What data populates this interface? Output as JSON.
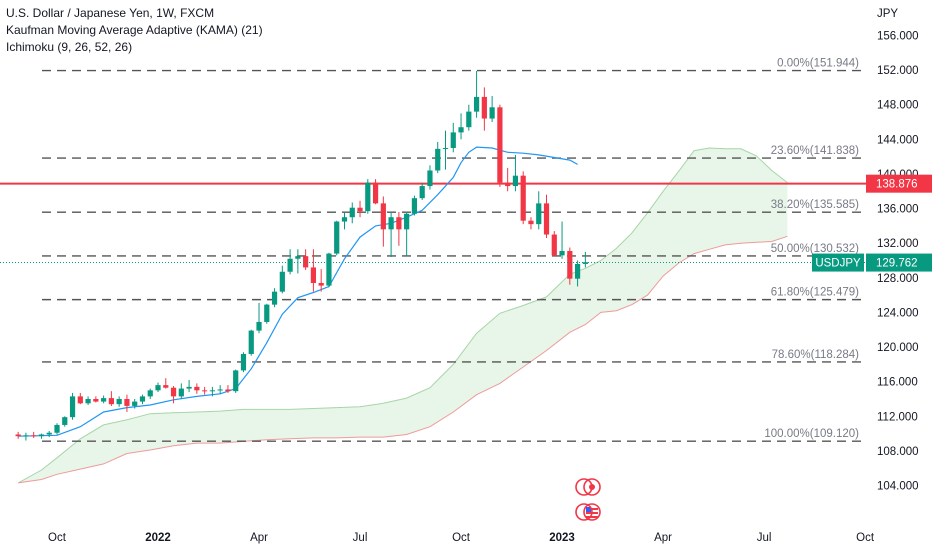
{
  "legend": {
    "title": "U.S. Dollar / Japanese Yen, 1W, FXCM",
    "kama": "Kaufman Moving Average Adaptive (KAMA) (21)",
    "ichimoku": "Ichimoku (9, 26, 52, 26)"
  },
  "colors": {
    "up": "#089981",
    "down": "#f23645",
    "kama": "#2196f3",
    "cloud_fill": "#e8f5e9",
    "span_a": "#a5d6a7",
    "span_b": "#ef9a9a",
    "hline": "#f23645",
    "price_line": "#089981",
    "fib": "#555555"
  },
  "chart_data": {
    "type": "candlestick",
    "symbol": "USDJPY",
    "currency_label": "JPY",
    "interval": "1W",
    "x_labels": [
      {
        "label": "Oct",
        "x": 0
      },
      {
        "label": "2022",
        "x": 13
      },
      {
        "label": "Apr",
        "x": 26
      },
      {
        "label": "Jul",
        "x": 39
      },
      {
        "label": "Oct",
        "x": 52
      },
      {
        "label": "2023",
        "x": 65
      },
      {
        "label": "Apr",
        "x": 78
      },
      {
        "label": "Jul",
        "x": 91
      },
      {
        "label": "Oct",
        "x": 104
      }
    ],
    "ylim": [
      101.0,
      159.0
    ],
    "y_ticks": [
      104.0,
      108.0,
      112.0,
      116.0,
      120.0,
      124.0,
      128.0,
      132.0,
      136.0,
      140.0,
      144.0,
      148.0,
      152.0,
      156.0
    ],
    "candles": [
      {
        "x": -5,
        "o": 109.9,
        "h": 110.2,
        "l": 109.4,
        "c": 109.7
      },
      {
        "x": -4,
        "o": 109.7,
        "h": 110.1,
        "l": 109.2,
        "c": 109.8
      },
      {
        "x": -3,
        "o": 109.8,
        "h": 110.2,
        "l": 109.5,
        "c": 109.7
      },
      {
        "x": -2,
        "o": 109.7,
        "h": 110.0,
        "l": 109.4,
        "c": 109.9
      },
      {
        "x": -1,
        "o": 109.9,
        "h": 110.3,
        "l": 109.6,
        "c": 110.1
      },
      {
        "x": 0,
        "o": 110.1,
        "h": 111.2,
        "l": 109.9,
        "c": 111.0
      },
      {
        "x": 1,
        "o": 111.0,
        "h": 112.0,
        "l": 110.8,
        "c": 111.9
      },
      {
        "x": 2,
        "o": 111.9,
        "h": 114.7,
        "l": 111.6,
        "c": 114.3
      },
      {
        "x": 3,
        "o": 114.3,
        "h": 114.7,
        "l": 113.4,
        "c": 113.5
      },
      {
        "x": 4,
        "o": 113.5,
        "h": 114.3,
        "l": 113.3,
        "c": 114.0
      },
      {
        "x": 5,
        "o": 114.0,
        "h": 114.3,
        "l": 113.6,
        "c": 113.7
      },
      {
        "x": 6,
        "o": 113.7,
        "h": 114.4,
        "l": 113.5,
        "c": 114.1
      },
      {
        "x": 7,
        "o": 114.1,
        "h": 114.9,
        "l": 113.2,
        "c": 113.4
      },
      {
        "x": 8,
        "o": 113.4,
        "h": 114.3,
        "l": 113.1,
        "c": 114.0
      },
      {
        "x": 9,
        "o": 114.0,
        "h": 114.5,
        "l": 112.5,
        "c": 113.2
      },
      {
        "x": 10,
        "o": 113.2,
        "h": 114.0,
        "l": 112.9,
        "c": 113.7
      },
      {
        "x": 11,
        "o": 113.7,
        "h": 114.5,
        "l": 113.4,
        "c": 114.3
      },
      {
        "x": 12,
        "o": 114.3,
        "h": 115.2,
        "l": 114.0,
        "c": 115.0
      },
      {
        "x": 13,
        "o": 115.0,
        "h": 115.9,
        "l": 114.8,
        "c": 115.6
      },
      {
        "x": 14,
        "o": 115.6,
        "h": 116.4,
        "l": 115.2,
        "c": 115.3
      },
      {
        "x": 15,
        "o": 115.3,
        "h": 115.5,
        "l": 113.5,
        "c": 114.3
      },
      {
        "x": 16,
        "o": 114.3,
        "h": 115.8,
        "l": 114.0,
        "c": 115.2
      },
      {
        "x": 17,
        "o": 115.2,
        "h": 116.2,
        "l": 114.8,
        "c": 115.4
      },
      {
        "x": 18,
        "o": 115.4,
        "h": 115.8,
        "l": 114.6,
        "c": 115.0
      },
      {
        "x": 19,
        "o": 115.0,
        "h": 115.4,
        "l": 114.5,
        "c": 114.9
      },
      {
        "x": 20,
        "o": 114.9,
        "h": 115.4,
        "l": 114.3,
        "c": 115.0
      },
      {
        "x": 21,
        "o": 115.0,
        "h": 115.6,
        "l": 114.6,
        "c": 115.1
      },
      {
        "x": 22,
        "o": 115.1,
        "h": 115.6,
        "l": 114.7,
        "c": 114.9
      },
      {
        "x": 23,
        "o": 114.9,
        "h": 117.4,
        "l": 114.7,
        "c": 117.3
      },
      {
        "x": 24,
        "o": 117.3,
        "h": 119.4,
        "l": 117.1,
        "c": 119.2
      },
      {
        "x": 25,
        "o": 119.2,
        "h": 122.0,
        "l": 119.0,
        "c": 121.9
      },
      {
        "x": 26,
        "o": 121.9,
        "h": 125.1,
        "l": 121.6,
        "c": 122.9
      },
      {
        "x": 27,
        "o": 122.9,
        "h": 125.0,
        "l": 122.7,
        "c": 124.9
      },
      {
        "x": 28,
        "o": 124.9,
        "h": 126.8,
        "l": 124.6,
        "c": 126.4
      },
      {
        "x": 29,
        "o": 126.4,
        "h": 129.4,
        "l": 126.2,
        "c": 128.7
      },
      {
        "x": 30,
        "o": 128.7,
        "h": 131.3,
        "l": 128.4,
        "c": 130.2
      },
      {
        "x": 31,
        "o": 130.2,
        "h": 131.3,
        "l": 128.5,
        "c": 130.5
      },
      {
        "x": 32,
        "o": 130.5,
        "h": 131.3,
        "l": 128.9,
        "c": 129.2
      },
      {
        "x": 33,
        "o": 129.2,
        "h": 131.3,
        "l": 126.4,
        "c": 127.4
      },
      {
        "x": 34,
        "o": 127.4,
        "h": 129.0,
        "l": 126.4,
        "c": 127.1
      },
      {
        "x": 35,
        "o": 127.1,
        "h": 130.9,
        "l": 126.9,
        "c": 130.8
      },
      {
        "x": 36,
        "o": 130.8,
        "h": 134.6,
        "l": 130.6,
        "c": 134.5
      },
      {
        "x": 37,
        "o": 134.5,
        "h": 135.6,
        "l": 133.6,
        "c": 135.0
      },
      {
        "x": 38,
        "o": 135.0,
        "h": 136.7,
        "l": 134.3,
        "c": 136.1
      },
      {
        "x": 39,
        "o": 136.1,
        "h": 136.9,
        "l": 135.0,
        "c": 135.7
      },
      {
        "x": 40,
        "o": 135.7,
        "h": 139.4,
        "l": 135.4,
        "c": 139.0
      },
      {
        "x": 41,
        "o": 139.0,
        "h": 139.4,
        "l": 136.5,
        "c": 136.6
      },
      {
        "x": 42,
        "o": 136.6,
        "h": 137.4,
        "l": 131.6,
        "c": 133.6
      },
      {
        "x": 43,
        "o": 133.6,
        "h": 135.6,
        "l": 130.4,
        "c": 135.0
      },
      {
        "x": 44,
        "o": 135.0,
        "h": 135.6,
        "l": 131.7,
        "c": 133.6
      },
      {
        "x": 45,
        "o": 133.6,
        "h": 135.6,
        "l": 130.5,
        "c": 135.4
      },
      {
        "x": 46,
        "o": 135.4,
        "h": 137.5,
        "l": 135.2,
        "c": 137.2
      },
      {
        "x": 47,
        "o": 137.2,
        "h": 139.0,
        "l": 137.0,
        "c": 138.6
      },
      {
        "x": 48,
        "o": 138.6,
        "h": 141.0,
        "l": 138.2,
        "c": 140.4
      },
      {
        "x": 49,
        "o": 140.4,
        "h": 143.7,
        "l": 140.1,
        "c": 142.9
      },
      {
        "x": 50,
        "o": 142.9,
        "h": 145.0,
        "l": 140.5,
        "c": 143.0
      },
      {
        "x": 51,
        "o": 143.0,
        "h": 145.9,
        "l": 142.5,
        "c": 144.8
      },
      {
        "x": 52,
        "o": 144.8,
        "h": 147.0,
        "l": 144.0,
        "c": 145.4
      },
      {
        "x": 53,
        "o": 145.4,
        "h": 148.0,
        "l": 145.0,
        "c": 147.2
      },
      {
        "x": 54,
        "o": 147.2,
        "h": 151.9,
        "l": 146.5,
        "c": 148.9
      },
      {
        "x": 55,
        "o": 148.9,
        "h": 150.0,
        "l": 145.0,
        "c": 146.4
      },
      {
        "x": 56,
        "o": 146.4,
        "h": 149.0,
        "l": 146.0,
        "c": 147.7
      },
      {
        "x": 57,
        "o": 147.7,
        "h": 148.0,
        "l": 138.5,
        "c": 139.0
      },
      {
        "x": 58,
        "o": 139.0,
        "h": 140.7,
        "l": 138.0,
        "c": 138.6
      },
      {
        "x": 59,
        "o": 138.6,
        "h": 142.2,
        "l": 138.0,
        "c": 139.8
      },
      {
        "x": 60,
        "o": 139.8,
        "h": 140.3,
        "l": 134.2,
        "c": 134.6
      },
      {
        "x": 61,
        "o": 134.6,
        "h": 135.0,
        "l": 133.6,
        "c": 134.2
      },
      {
        "x": 62,
        "o": 134.2,
        "h": 138.0,
        "l": 133.6,
        "c": 136.6
      },
      {
        "x": 63,
        "o": 136.6,
        "h": 137.6,
        "l": 132.6,
        "c": 133.0
      },
      {
        "x": 64,
        "o": 133.0,
        "h": 133.4,
        "l": 130.5,
        "c": 130.6
      },
      {
        "x": 65,
        "o": 130.6,
        "h": 134.5,
        "l": 130.2,
        "c": 131.1
      },
      {
        "x": 66,
        "o": 131.1,
        "h": 131.5,
        "l": 127.2,
        "c": 127.9
      },
      {
        "x": 67,
        "o": 127.9,
        "h": 130.0,
        "l": 127.0,
        "c": 129.6
      },
      {
        "x": 68,
        "o": 129.6,
        "h": 131.0,
        "l": 129.2,
        "c": 129.8
      }
    ],
    "kama": {
      "name": "KAMA (21)",
      "points": [
        [
          -5,
          109.7
        ],
        [
          0,
          109.8
        ],
        [
          3,
          110.8
        ],
        [
          6,
          112.5
        ],
        [
          9,
          113.0
        ],
        [
          12,
          113.3
        ],
        [
          15,
          113.9
        ],
        [
          18,
          114.3
        ],
        [
          21,
          114.6
        ],
        [
          23,
          115.2
        ],
        [
          25,
          117.5
        ],
        [
          27,
          120.5
        ],
        [
          29,
          123.8
        ],
        [
          31,
          125.7
        ],
        [
          33,
          126.3
        ],
        [
          35,
          127.0
        ],
        [
          37,
          130.2
        ],
        [
          39,
          132.7
        ],
        [
          41,
          134.0
        ],
        [
          43,
          134.3
        ],
        [
          45,
          135.0
        ],
        [
          47,
          135.8
        ],
        [
          49,
          137.6
        ],
        [
          51,
          139.6
        ],
        [
          52,
          141.3
        ],
        [
          53,
          142.5
        ],
        [
          54,
          143.1
        ],
        [
          56,
          143.0
        ],
        [
          58,
          142.5
        ],
        [
          60,
          142.4
        ],
        [
          62,
          142.2
        ],
        [
          64,
          141.9
        ],
        [
          66,
          141.6
        ],
        [
          67,
          141.1
        ]
      ]
    },
    "cloud": {
      "x": [
        -5,
        -2,
        0,
        3,
        6,
        9,
        12,
        15,
        18,
        21,
        24,
        27,
        30,
        33,
        36,
        39,
        42,
        45,
        48,
        51,
        54,
        57,
        60,
        63,
        66,
        68,
        70,
        72,
        74,
        76,
        78,
        80,
        82,
        84,
        86,
        88,
        90,
        92,
        94
      ],
      "span_a": [
        104.3,
        105.8,
        107.2,
        109.4,
        111.0,
        111.6,
        112.3,
        112.4,
        112.5,
        112.6,
        112.8,
        112.8,
        112.8,
        112.9,
        113.0,
        113.1,
        113.5,
        114.1,
        115.3,
        118.0,
        121.6,
        123.9,
        124.8,
        125.8,
        128.4,
        129.1,
        130.0,
        131.4,
        133.2,
        135.5,
        138.0,
        140.3,
        142.7,
        143.0,
        142.9,
        142.9,
        142.1,
        140.4,
        139.0
      ],
      "span_b": [
        104.3,
        104.7,
        105.3,
        105.9,
        106.5,
        107.7,
        108.1,
        108.6,
        108.9,
        108.9,
        109.1,
        109.3,
        109.4,
        109.5,
        109.5,
        109.6,
        109.6,
        109.9,
        110.8,
        112.5,
        114.5,
        115.8,
        117.7,
        119.6,
        121.7,
        122.6,
        124.0,
        124.2,
        124.9,
        126.0,
        128.2,
        129.7,
        130.8,
        131.3,
        131.8,
        132.0,
        132.1,
        132.2,
        132.8
      ]
    },
    "fib_levels": [
      {
        "label": "0.00%(151.944)",
        "value": 151.944
      },
      {
        "label": "23.60%(141.838)",
        "value": 141.838
      },
      {
        "label": "38.20%(135.585)",
        "value": 135.585
      },
      {
        "label": "50.00%(130.532)",
        "value": 130.532
      },
      {
        "label": "61.80%(125.479)",
        "value": 125.479
      },
      {
        "label": "78.60%(118.284)",
        "value": 118.284
      },
      {
        "label": "100.00%(109.120)",
        "value": 109.12
      }
    ],
    "horizontal_line": {
      "value": 138.876,
      "label": "138.876"
    },
    "last_price": {
      "symbol": "USDJPY",
      "value": 129.762,
      "label": "129.762"
    },
    "grid": false
  }
}
